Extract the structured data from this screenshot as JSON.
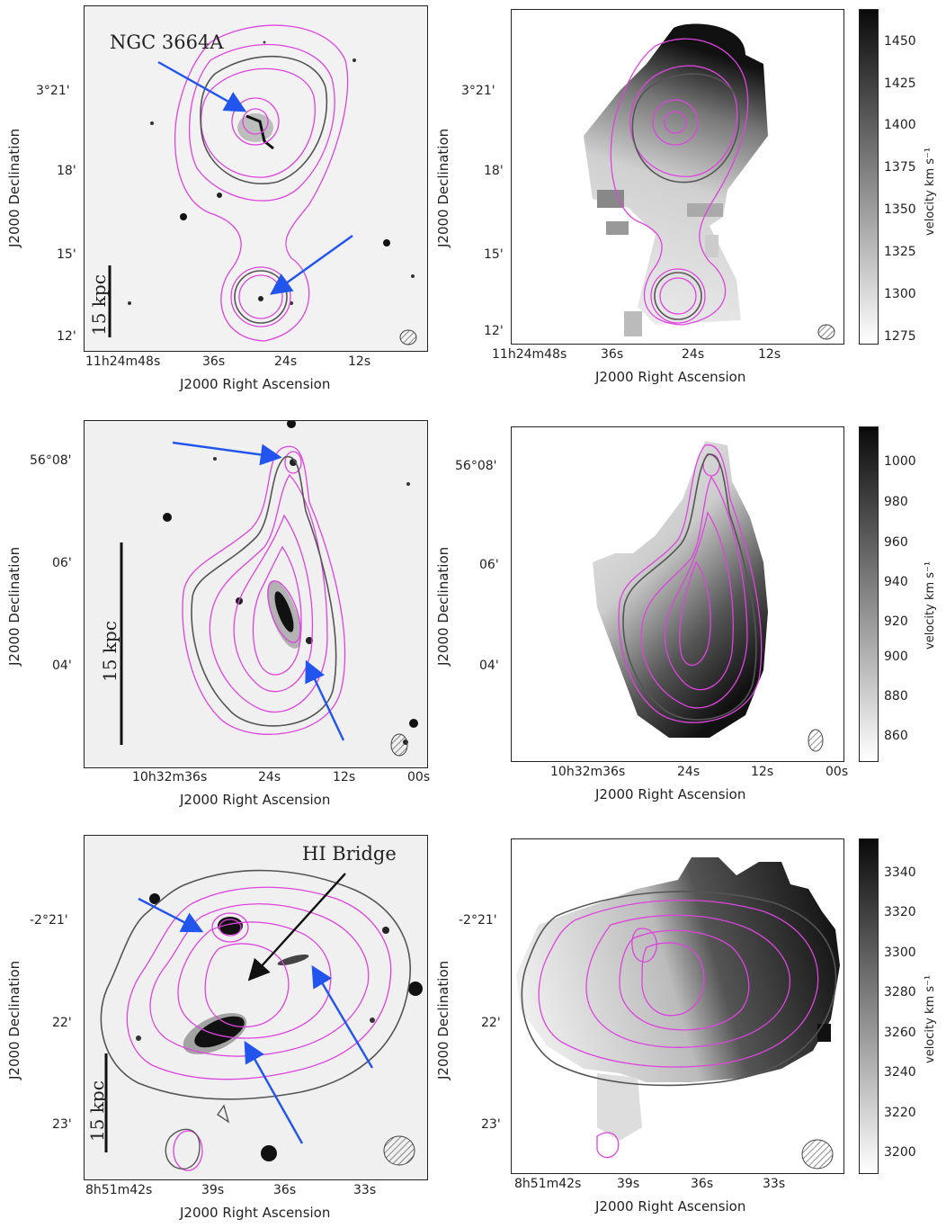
{
  "figure": {
    "rows": [
      {
        "id": "row1",
        "annotation": "NGC 3664A",
        "scale_bar": "15 kpc",
        "left": {
          "ylabel": "J2000 Declination",
          "xlabel": "J2000 Right Ascension",
          "yticks": [
            "3°21'",
            "18'",
            "15'",
            "12'"
          ],
          "xticks": [
            "11h24m48s",
            "36s",
            "24s",
            "12s"
          ]
        },
        "right": {
          "ylabel": "J2000 Declination",
          "xlabel": "J2000 Right Ascension",
          "yticks": [
            "3°21'",
            "18'",
            "15'",
            "12'"
          ],
          "xticks": [
            "11h24m48s",
            "36s",
            "24s",
            "12s"
          ]
        },
        "colorbar": {
          "label": "velocity km s⁻¹",
          "ticks": [
            "1450",
            "1425",
            "1400",
            "1375",
            "1350",
            "1325",
            "1300",
            "1275"
          ]
        }
      },
      {
        "id": "row2",
        "annotation": "",
        "scale_bar": "15 kpc",
        "left": {
          "ylabel": "J2000 Declination",
          "xlabel": "J2000 Right Ascension",
          "yticks": [
            "56°08'",
            "06'",
            "04'"
          ],
          "xticks": [
            "10h32m36s",
            "24s",
            "12s",
            "00s"
          ]
        },
        "right": {
          "ylabel": "J2000 Declination",
          "xlabel": "J2000 Right Ascension",
          "yticks": [
            "56°08'",
            "06'",
            "04'"
          ],
          "xticks": [
            "10h32m36s",
            "24s",
            "12s",
            "00s"
          ]
        },
        "colorbar": {
          "label": "velocity km s⁻¹",
          "ticks": [
            "1000",
            "980",
            "960",
            "940",
            "920",
            "900",
            "880",
            "860"
          ]
        }
      },
      {
        "id": "row3",
        "annotation": "HI Bridge",
        "scale_bar": "15 kpc",
        "left": {
          "ylabel": "J2000 Declination",
          "xlabel": "J2000 Right Ascension",
          "yticks": [
            "-2°21'",
            "22'",
            "23'"
          ],
          "xticks": [
            "8h51m42s",
            "39s",
            "36s",
            "33s"
          ]
        },
        "right": {
          "ylabel": "J2000 Declination",
          "xlabel": "J2000 Right Ascension",
          "yticks": [
            "-2°21'",
            "22'",
            "23'"
          ],
          "xticks": [
            "8h51m42s",
            "39s",
            "36s",
            "33s"
          ]
        },
        "colorbar": {
          "label": "velocity km s⁻¹",
          "ticks": [
            "3340",
            "3320",
            "3300",
            "3280",
            "3260",
            "3240",
            "3220",
            "3200"
          ]
        }
      }
    ],
    "colors": {
      "contour_pink": "#dd44dd",
      "contour_gray": "#555555",
      "arrow_blue": "#2255ee",
      "arrow_black": "#111111"
    }
  }
}
